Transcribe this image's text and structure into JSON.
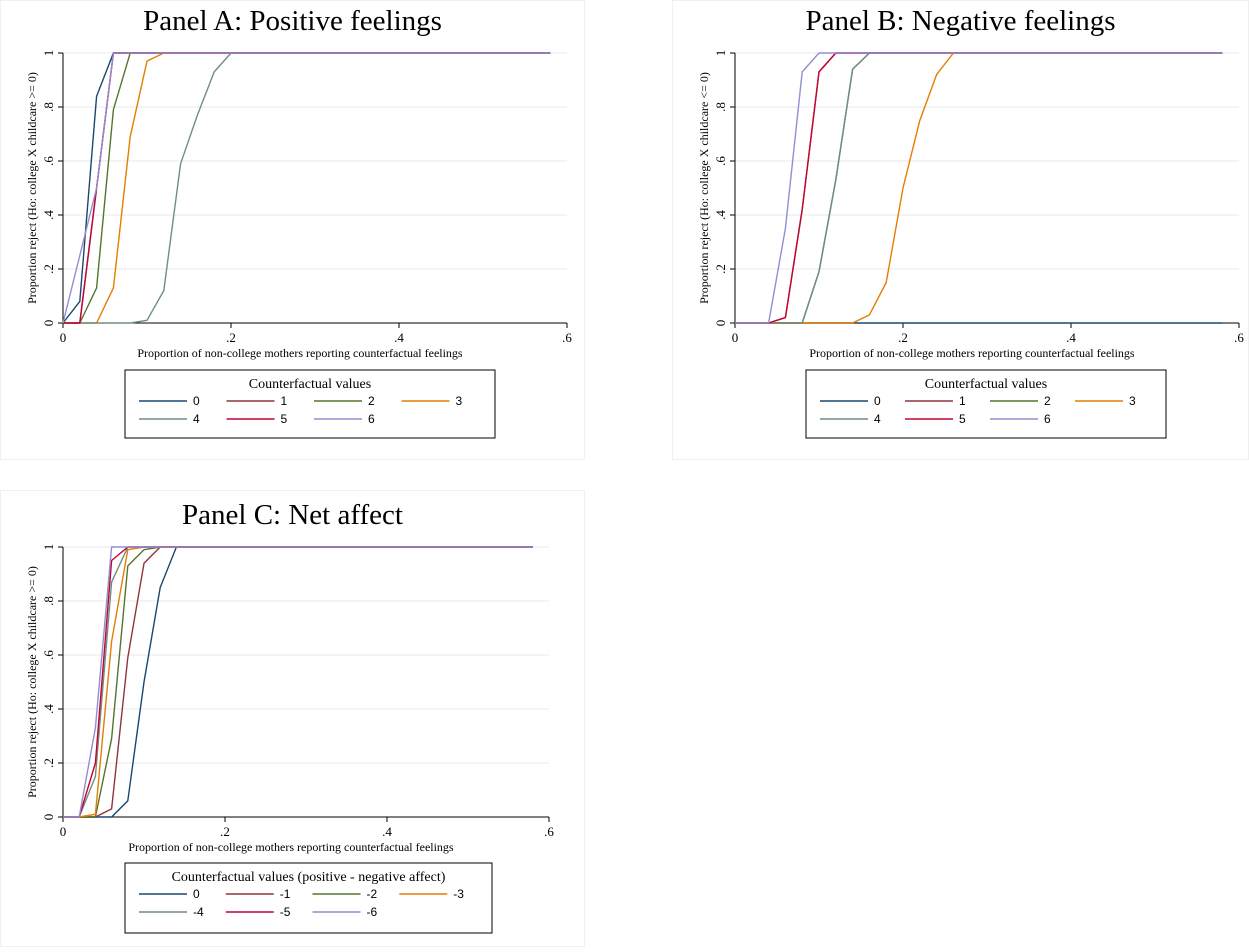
{
  "colors": [
    "#1a476f",
    "#90353b",
    "#55752f",
    "#e37e00",
    "#6e8e84",
    "#c10534",
    "#938dd2"
  ],
  "legend_line_colors": [
    "#1a476f",
    "#90353b",
    "#55752f",
    "#e37e00",
    "#6e8e84",
    "#c10534",
    "#938dd2"
  ],
  "chart_data": [
    {
      "type": "line",
      "title": "Panel A: Positive feelings",
      "xlabel": "Proportion of non-college mothers reporting counterfactual feelings",
      "ylabel": "Proportion reject (Ho: college X childcare >= 0)",
      "xlim": [
        0,
        0.6
      ],
      "ylim": [
        0,
        1
      ],
      "xticks": [
        0,
        0.2,
        0.4,
        0.6
      ],
      "xtick_labels": [
        "0",
        ".2",
        ".4",
        ".6"
      ],
      "yticks": [
        0,
        0.2,
        0.4,
        0.6,
        0.8,
        1
      ],
      "ytick_labels": [
        "0",
        ".2",
        ".4",
        ".6",
        ".8",
        "1"
      ],
      "grid": true,
      "legend_title": "Counterfactual values",
      "legend_position": "bottom",
      "series": [
        {
          "name": "0",
          "x": [
            0,
            0.02,
            0.04,
            0.06,
            0.58
          ],
          "y": [
            0,
            0.08,
            0.84,
            1,
            1
          ]
        },
        {
          "name": "1",
          "x": [
            0,
            0.02,
            0.04,
            0.06,
            0.58
          ],
          "y": [
            0,
            0,
            0.5,
            1,
            1
          ]
        },
        {
          "name": "2",
          "x": [
            0,
            0.02,
            0.04,
            0.06,
            0.08,
            0.58
          ],
          "y": [
            0,
            0,
            0.13,
            0.79,
            1,
            1
          ]
        },
        {
          "name": "3",
          "x": [
            0,
            0.04,
            0.06,
            0.08,
            0.1,
            0.12,
            0.14,
            0.16,
            0.58
          ],
          "y": [
            0,
            0,
            0.13,
            0.69,
            0.97,
            1,
            1,
            1,
            1
          ]
        },
        {
          "name": "4",
          "x": [
            0,
            0.08,
            0.1,
            0.12,
            0.14,
            0.16,
            0.18,
            0.2,
            0.58
          ],
          "y": [
            0,
            0,
            0.01,
            0.12,
            0.59,
            0.77,
            0.93,
            1,
            1
          ]
        },
        {
          "name": "5",
          "x": [
            0,
            0.02,
            0.04,
            0.06,
            0.58
          ],
          "y": [
            0,
            0,
            0.5,
            1,
            1
          ]
        },
        {
          "name": "6",
          "x": [
            0,
            0.04,
            0.06,
            0.58
          ],
          "y": [
            0,
            0.5,
            1,
            1
          ]
        }
      ]
    },
    {
      "type": "line",
      "title": "Panel B: Negative feelings",
      "xlabel": "Proportion of non-college mothers reporting counterfactual feelings",
      "ylabel": "Proportion reject (Ho: college X childcare <= 0)",
      "xlim": [
        0,
        0.6
      ],
      "ylim": [
        0,
        1
      ],
      "xticks": [
        0,
        0.2,
        0.4,
        0.6
      ],
      "xtick_labels": [
        "0",
        ".2",
        ".4",
        ".6"
      ],
      "yticks": [
        0,
        0.2,
        0.4,
        0.6,
        0.8,
        1
      ],
      "ytick_labels": [
        "0",
        ".2",
        ".4",
        ".6",
        ".8",
        "1"
      ],
      "grid": true,
      "legend_title": "Counterfactual values",
      "legend_position": "bottom",
      "series": [
        {
          "name": "0",
          "x": [
            0,
            0.58
          ],
          "y": [
            0,
            0
          ]
        },
        {
          "name": "1",
          "x": [
            0,
            0.04,
            0.06,
            0.08,
            0.1,
            0.12,
            0.58
          ],
          "y": [
            0,
            0,
            0.02,
            0.42,
            0.93,
            1,
            1
          ]
        },
        {
          "name": "2",
          "x": [
            0,
            0.08,
            0.1,
            0.12,
            0.14,
            0.16,
            0.58
          ],
          "y": [
            0,
            0,
            0.19,
            0.53,
            0.94,
            1,
            1
          ]
        },
        {
          "name": "3",
          "x": [
            0,
            0.14,
            0.16,
            0.18,
            0.2,
            0.22,
            0.24,
            0.26,
            0.58
          ],
          "y": [
            0,
            0,
            0.03,
            0.15,
            0.5,
            0.75,
            0.92,
            1,
            1
          ]
        },
        {
          "name": "4",
          "x": [
            0,
            0.08,
            0.1,
            0.12,
            0.14,
            0.16,
            0.58
          ],
          "y": [
            0,
            0,
            0.19,
            0.53,
            0.94,
            1,
            1
          ]
        },
        {
          "name": "5",
          "x": [
            0,
            0.04,
            0.06,
            0.08,
            0.1,
            0.12,
            0.58
          ],
          "y": [
            0,
            0,
            0.02,
            0.42,
            0.93,
            1,
            1
          ]
        },
        {
          "name": "6",
          "x": [
            0,
            0.04,
            0.06,
            0.08,
            0.1,
            0.58
          ],
          "y": [
            0,
            0,
            0.35,
            0.93,
            1,
            1
          ]
        }
      ]
    },
    {
      "type": "line",
      "title": "Panel C: Net affect",
      "xlabel": "Proportion of non-college mothers reporting counterfactual feelings",
      "ylabel": "Proportion reject (Ho: college X childcare >= 0)",
      "xlim": [
        0,
        0.6
      ],
      "ylim": [
        0,
        1
      ],
      "xticks": [
        0,
        0.2,
        0.4,
        0.6
      ],
      "xtick_labels": [
        "0",
        ".2",
        ".4",
        ".6"
      ],
      "yticks": [
        0,
        0.2,
        0.4,
        0.6,
        0.8,
        1
      ],
      "ytick_labels": [
        "0",
        ".2",
        ".4",
        ".6",
        ".8",
        "1"
      ],
      "grid": true,
      "legend_title": "Counterfactual values (positive - negative affect)",
      "legend_position": "bottom",
      "series": [
        {
          "name": "0",
          "x": [
            0,
            0.02,
            0.04,
            0.06,
            0.08,
            0.1,
            0.12,
            0.14,
            0.58
          ],
          "y": [
            0,
            0,
            0,
            0,
            0.06,
            0.5,
            0.85,
            1,
            1
          ]
        },
        {
          "name": "-1",
          "x": [
            0,
            0.02,
            0.04,
            0.06,
            0.08,
            0.1,
            0.12,
            0.58
          ],
          "y": [
            0,
            0,
            0,
            0.03,
            0.59,
            0.94,
            1,
            1
          ]
        },
        {
          "name": "-2",
          "x": [
            0,
            0.02,
            0.04,
            0.06,
            0.08,
            0.1,
            0.12,
            0.58
          ],
          "y": [
            0,
            0,
            0,
            0.29,
            0.93,
            0.99,
            1,
            1
          ]
        },
        {
          "name": "-3",
          "x": [
            0,
            0.02,
            0.04,
            0.06,
            0.08,
            0.1,
            0.58
          ],
          "y": [
            0,
            0,
            0.01,
            0.65,
            0.99,
            1,
            1
          ]
        },
        {
          "name": "-4",
          "x": [
            0,
            0.02,
            0.04,
            0.06,
            0.08,
            0.1,
            0.58
          ],
          "y": [
            0,
            0,
            0.15,
            0.87,
            1,
            1,
            1
          ]
        },
        {
          "name": "-5",
          "x": [
            0,
            0.02,
            0.04,
            0.06,
            0.08,
            0.58
          ],
          "y": [
            0,
            0,
            0.2,
            0.95,
            1,
            1
          ]
        },
        {
          "name": "-6",
          "x": [
            0,
            0.02,
            0.04,
            0.06,
            0.58
          ],
          "y": [
            0,
            0,
            0.33,
            1,
            1
          ]
        }
      ]
    }
  ]
}
